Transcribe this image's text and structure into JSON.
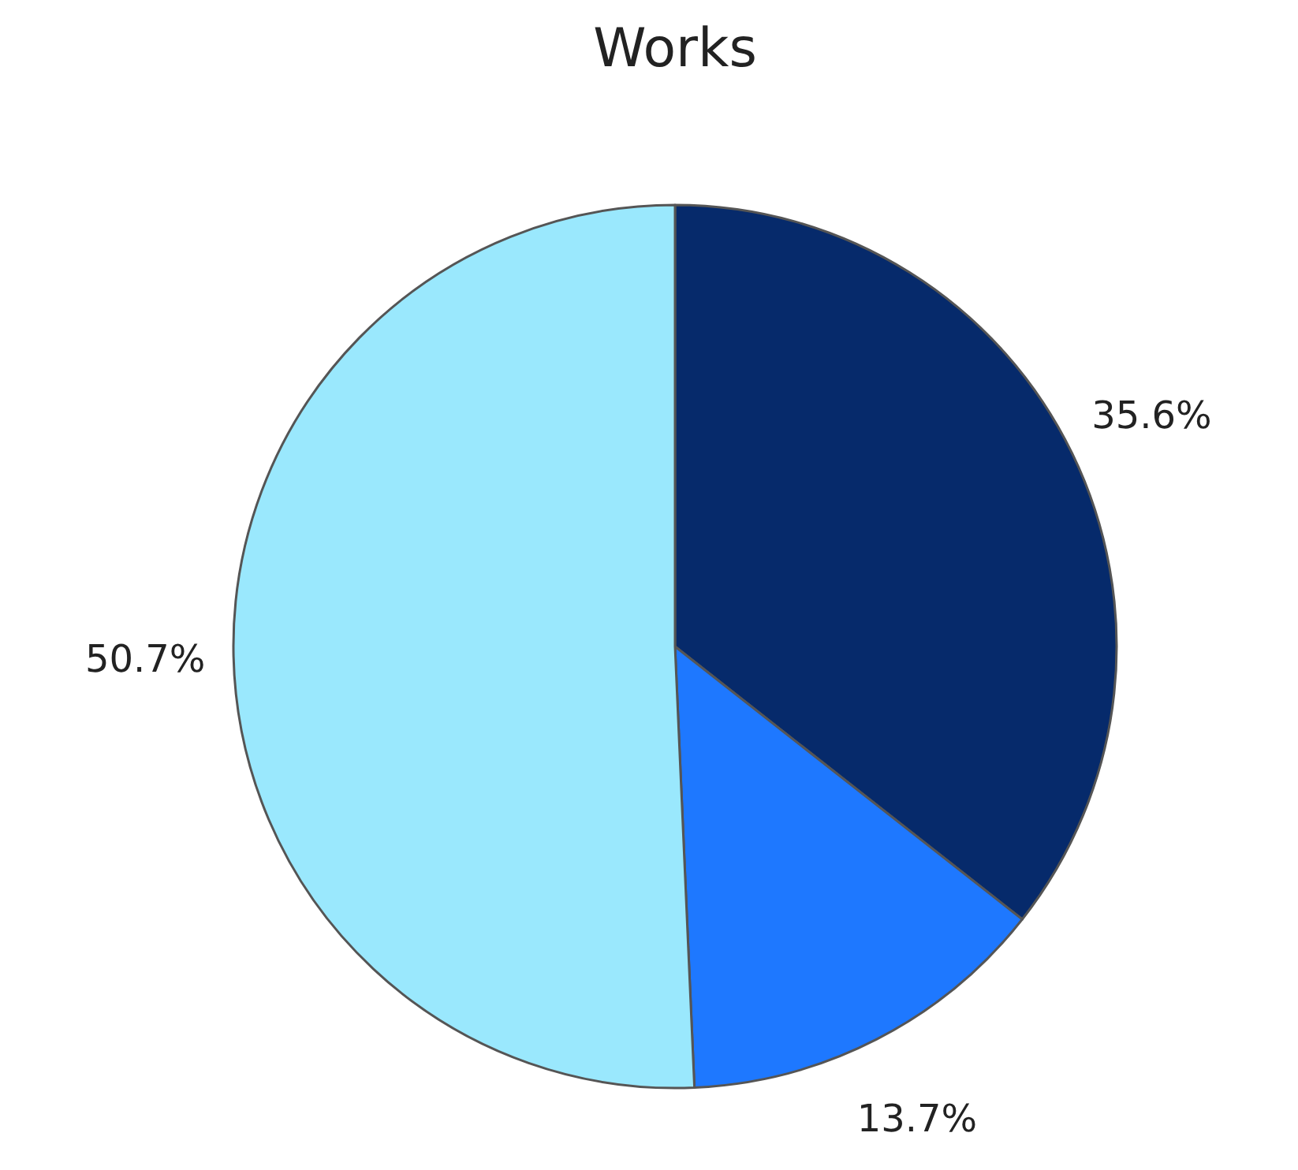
{
  "chart_data": {
    "type": "pie",
    "title": "Works",
    "categories": [
      null,
      null,
      null
    ],
    "values": [
      35.6,
      13.7,
      50.7
    ],
    "colors": [
      "#062a6b",
      "#1e78ff",
      "#9ae8fd"
    ],
    "value_labels": [
      "35.6%",
      "13.7%",
      "50.7%"
    ]
  }
}
